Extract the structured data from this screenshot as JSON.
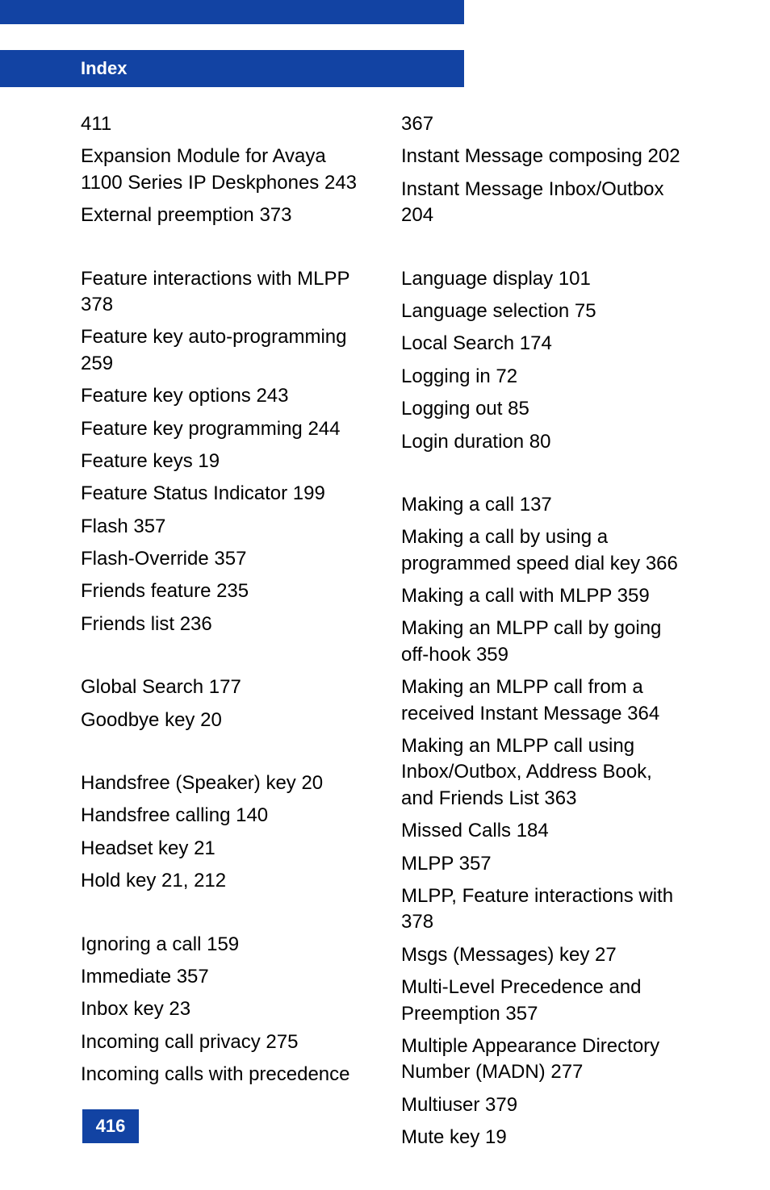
{
  "header": {
    "title": "Index"
  },
  "footer": {
    "page_number": "416"
  },
  "colors": {
    "header_bg": "#1243a3",
    "header_text": "#ffffff",
    "body_text": "#000000",
    "page_bg": "#ffffff"
  },
  "left_column": {
    "blocks": [
      {
        "entries": [
          "411",
          "Expansion Module for Avaya 1100 Series IP Deskphones 243",
          "External preemption 373"
        ]
      },
      {
        "entries": [
          "Feature interactions with MLPP 378",
          "Feature key auto-programming 259",
          "Feature key options 243",
          "Feature key programming 244",
          "Feature keys 19",
          "Feature Status Indicator 199",
          "Flash 357",
          "Flash-Override 357",
          "Friends feature 235",
          "Friends list 236"
        ]
      },
      {
        "entries": [
          "Global Search 177",
          "Goodbye key 20"
        ]
      },
      {
        "entries": [
          "Handsfree (Speaker) key 20",
          "Handsfree calling 140",
          "Headset key 21",
          "Hold key 21, 212"
        ]
      },
      {
        "entries": [
          "Ignoring a call 159",
          "Immediate 357",
          "Inbox key 23",
          "Incoming call privacy 275",
          "Incoming calls with precedence"
        ]
      }
    ]
  },
  "right_column": {
    "blocks": [
      {
        "entries": [
          "367",
          "Instant Message composing 202",
          "Instant Message Inbox/Outbox 204"
        ]
      },
      {
        "entries": [
          "Language display 101",
          "Language selection 75",
          "Local Search 174",
          "Logging in 72",
          "Logging out 85",
          "Login duration 80"
        ]
      },
      {
        "entries": [
          "Making a call 137",
          "Making a call by using a programmed speed dial key 366",
          "Making a call with MLPP 359",
          "Making an MLPP call by going off-hook 359",
          "Making an MLPP call from a received Instant Message 364",
          "Making an MLPP call using Inbox/Outbox, Address Book, and Friends List 363",
          "Missed Calls 184",
          "MLPP 357",
          "MLPP, Feature interactions with 378",
          "Msgs (Messages) key 27",
          "Multi-Level Precedence and Preemption 357",
          "Multiple Appearance Directory Number (MADN) 277",
          "Multiuser 379",
          "Mute key 19"
        ]
      }
    ]
  }
}
